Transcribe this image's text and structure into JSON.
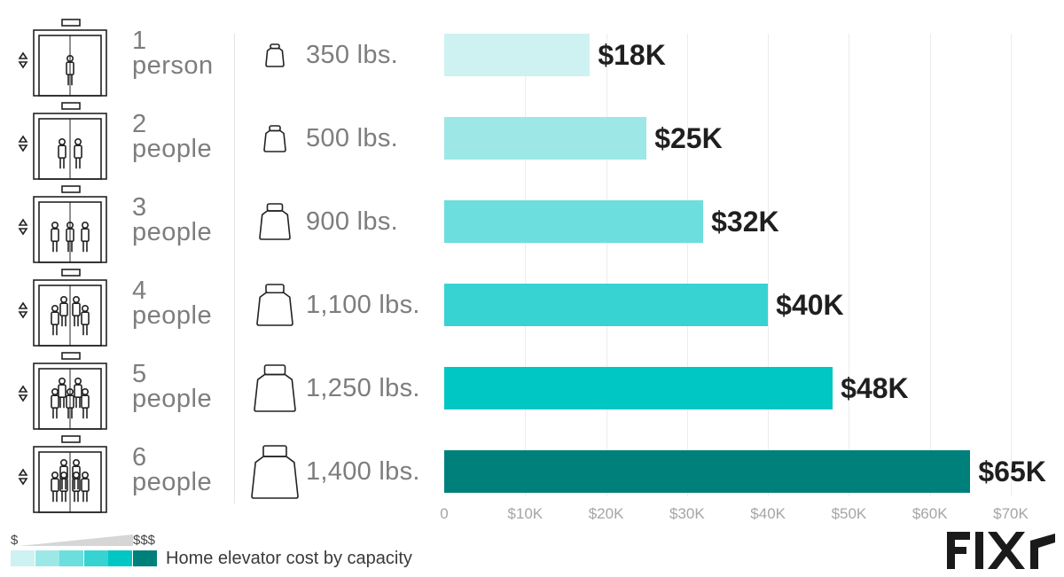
{
  "chart_data": {
    "type": "bar",
    "orientation": "horizontal",
    "title": "Home elevator cost by capacity",
    "categories": [
      "1 person",
      "2 people",
      "3 people",
      "4 people",
      "5 people",
      "6 people"
    ],
    "rows": [
      {
        "count": "1",
        "unit": "person",
        "weight": "350 lbs.",
        "value": 18,
        "label": "$18K",
        "color": "#cdf2f1"
      },
      {
        "count": "2",
        "unit": "people",
        "weight": "500 lbs.",
        "value": 25,
        "label": "$25K",
        "color": "#9de8e7"
      },
      {
        "count": "3",
        "unit": "people",
        "weight": "900 lbs.",
        "value": 32,
        "label": "$32K",
        "color": "#6bdedd"
      },
      {
        "count": "4",
        "unit": "people",
        "weight": "1,100 lbs.",
        "value": 40,
        "label": "$40K",
        "color": "#37d3d2"
      },
      {
        "count": "5",
        "unit": "people",
        "weight": "1,250 lbs.",
        "value": 48,
        "label": "$48K",
        "color": "#00c6c4"
      },
      {
        "count": "6",
        "unit": "people",
        "weight": "1,400 lbs.",
        "value": 65,
        "label": "$65K",
        "color": "#00807a"
      }
    ],
    "xlim": [
      0,
      70
    ],
    "xticks": [
      "0",
      "$10K",
      "$20K",
      "$30K",
      "$40K",
      "$50K",
      "$60K",
      "$70K"
    ],
    "grid": true,
    "legend": {
      "position": "bottom-left",
      "scale_low": "$",
      "scale_high": "$$$",
      "colors": [
        "#cdf2f1",
        "#9de8e7",
        "#6bdedd",
        "#37d3d2",
        "#00c6c4",
        "#00807a"
      ]
    }
  },
  "brand": {
    "logo_text": "FIXR",
    "color": "#1a1a1a"
  }
}
